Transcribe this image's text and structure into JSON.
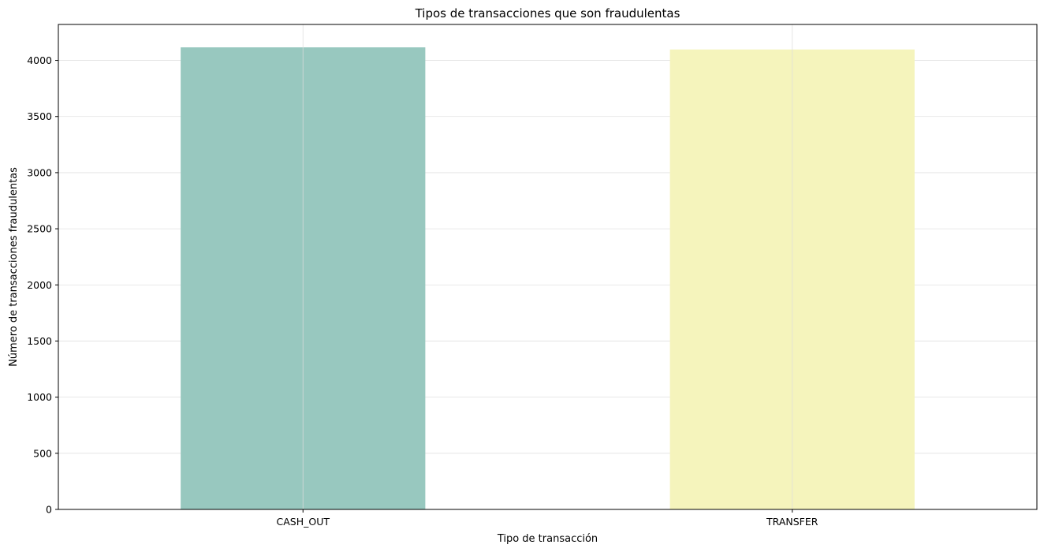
{
  "chart_data": {
    "type": "bar",
    "title": "Tipos de transacciones que son fraudulentas",
    "xlabel": "Tipo de transacción",
    "ylabel": "Número de transacciones fraudulentas",
    "categories": [
      "CASH_OUT",
      "TRANSFER"
    ],
    "values": [
      4116,
      4097
    ],
    "colors": [
      "#98c8bf",
      "#f5f4bc"
    ],
    "ylim": [
      0,
      4320
    ],
    "yticks": [
      0,
      500,
      1000,
      1500,
      2000,
      2500,
      3000,
      3500,
      4000
    ],
    "grid": true,
    "legend": "none"
  }
}
